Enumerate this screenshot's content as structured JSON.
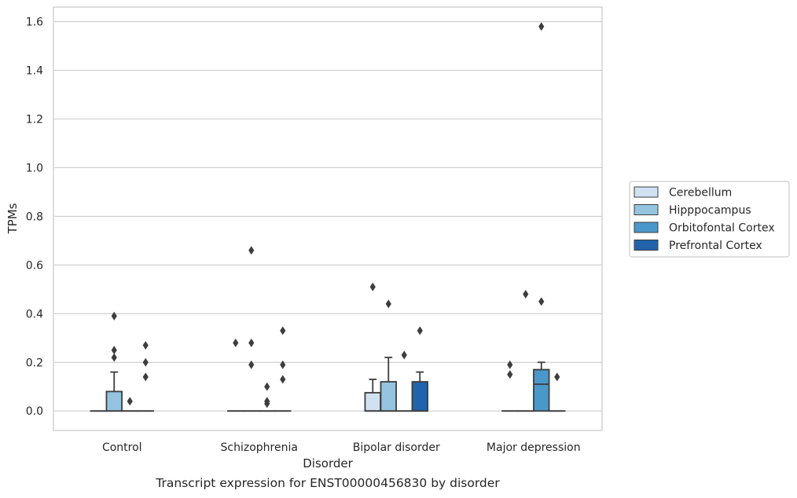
{
  "caption": "Transcript expression for ENST00000456830 by disorder",
  "chart_data": {
    "type": "box",
    "xlabel": "Disorder",
    "ylabel": "TPMs",
    "ylim": [
      -0.08,
      1.66
    ],
    "yticks": [
      0.0,
      0.2,
      0.4,
      0.6,
      0.8,
      1.0,
      1.2,
      1.4,
      1.6
    ],
    "categories": [
      "Control",
      "Schizophrenia",
      "Bipolar disorder",
      "Major depression"
    ],
    "grid": "horizontal",
    "legend": "right",
    "series": [
      {
        "name": "Cerebellum",
        "color": "#d0e1f2",
        "boxes": [
          {
            "q1": 0,
            "median": 0,
            "q3": 0,
            "whislo": 0,
            "whishi": 0,
            "fliers": []
          },
          {
            "q1": 0,
            "median": 0,
            "q3": 0,
            "whislo": 0,
            "whishi": 0,
            "fliers": [
              0.28
            ]
          },
          {
            "q1": 0,
            "median": 0,
            "q3": 0.075,
            "whislo": 0,
            "whishi": 0.13,
            "fliers": [
              0.51
            ]
          },
          {
            "q1": 0,
            "median": 0,
            "q3": 0,
            "whislo": 0,
            "whishi": 0,
            "fliers": [
              0.19,
              0.15
            ]
          }
        ]
      },
      {
        "name": "Hipppocampus",
        "color": "#94c4df",
        "boxes": [
          {
            "q1": 0,
            "median": 0,
            "q3": 0.08,
            "whislo": 0,
            "whishi": 0.16,
            "fliers": [
              0.39,
              0.25,
              0.22
            ]
          },
          {
            "q1": 0,
            "median": 0,
            "q3": 0,
            "whislo": 0,
            "whishi": 0,
            "fliers": [
              0.66,
              0.28,
              0.19
            ]
          },
          {
            "q1": 0,
            "median": 0,
            "q3": 0.12,
            "whislo": 0,
            "whishi": 0.22,
            "fliers": [
              0.44
            ]
          },
          {
            "q1": 0,
            "median": 0,
            "q3": 0,
            "whislo": 0,
            "whishi": 0,
            "fliers": [
              0.48
            ]
          }
        ]
      },
      {
        "name": "Orbitofontal Cortex",
        "color": "#4a98c9",
        "boxes": [
          {
            "q1": 0,
            "median": 0,
            "q3": 0,
            "whislo": 0,
            "whishi": 0,
            "fliers": [
              0.04
            ]
          },
          {
            "q1": 0,
            "median": 0,
            "q3": 0,
            "whislo": 0,
            "whishi": 0,
            "fliers": [
              0.1,
              0.04,
              0.03
            ]
          },
          {
            "q1": 0,
            "median": 0,
            "q3": 0,
            "whislo": 0,
            "whishi": 0,
            "fliers": [
              0.23
            ]
          },
          {
            "q1": 0,
            "median": 0.11,
            "q3": 0.17,
            "whislo": 0,
            "whishi": 0.2,
            "fliers": [
              1.58,
              0.45
            ]
          }
        ]
      },
      {
        "name": "Prefrontal Cortex",
        "color": "#2164ab",
        "boxes": [
          {
            "q1": 0,
            "median": 0,
            "q3": 0,
            "whislo": 0,
            "whishi": 0,
            "fliers": [
              0.27,
              0.2,
              0.14
            ]
          },
          {
            "q1": 0,
            "median": 0,
            "q3": 0,
            "whislo": 0,
            "whishi": 0,
            "fliers": [
              0.33,
              0.19,
              0.13
            ]
          },
          {
            "q1": 0,
            "median": 0,
            "q3": 0.12,
            "whislo": 0,
            "whishi": 0.16,
            "fliers": [
              0.33
            ]
          },
          {
            "q1": 0,
            "median": 0,
            "q3": 0,
            "whislo": 0,
            "whishi": 0,
            "fliers": [
              0.14
            ]
          }
        ]
      }
    ]
  }
}
